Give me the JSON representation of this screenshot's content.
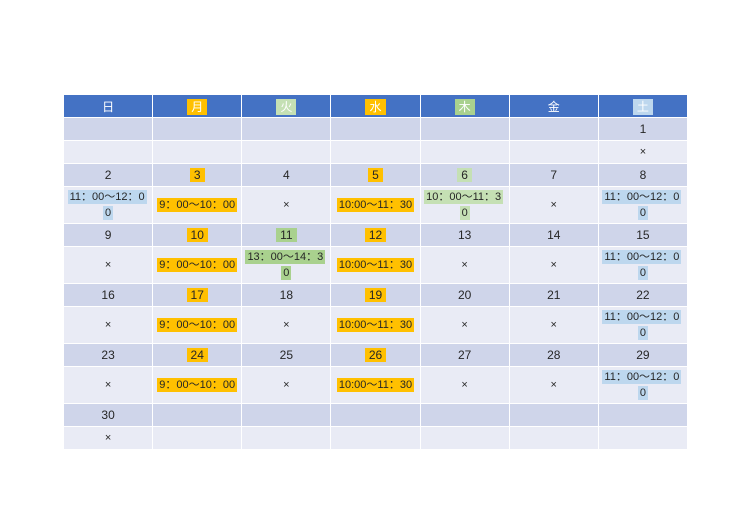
{
  "calendar": {
    "colors": {
      "header_bg": "#4472C4",
      "header_text": "#FFFFFF",
      "band_date": "#CFD5EA",
      "band_time": "#E9EBF5",
      "orange": "#FFC000",
      "green": "#A9D18E",
      "green_light": "#C5E0B4",
      "blue": "#BDD7EE",
      "text": "#262626"
    },
    "header": [
      {
        "key": "sun",
        "label": "日",
        "hl": null
      },
      {
        "key": "mon",
        "label": "月",
        "hl": "orange"
      },
      {
        "key": "tue",
        "label": "火",
        "hl": "green_light"
      },
      {
        "key": "wed",
        "label": "水",
        "hl": "orange"
      },
      {
        "key": "thu",
        "label": "木",
        "hl": "green"
      },
      {
        "key": "fri",
        "label": "金",
        "hl": null
      },
      {
        "key": "sat",
        "label": "土",
        "hl": "blue"
      }
    ],
    "rows": [
      {
        "type": "date",
        "cells": [
          {
            "text": ""
          },
          {
            "text": ""
          },
          {
            "text": ""
          },
          {
            "text": ""
          },
          {
            "text": ""
          },
          {
            "text": ""
          },
          {
            "text": "1"
          }
        ]
      },
      {
        "type": "time",
        "cells": [
          {
            "text": ""
          },
          {
            "text": ""
          },
          {
            "text": ""
          },
          {
            "text": ""
          },
          {
            "text": ""
          },
          {
            "text": ""
          },
          {
            "text": "×"
          }
        ]
      },
      {
        "type": "date",
        "cells": [
          {
            "text": "2"
          },
          {
            "text": "3",
            "hl": "orange"
          },
          {
            "text": "4"
          },
          {
            "text": "5",
            "hl": "orange"
          },
          {
            "text": "6",
            "hl": "green_light"
          },
          {
            "text": "7"
          },
          {
            "text": "8"
          }
        ]
      },
      {
        "type": "time",
        "cells": [
          {
            "text": "11：00～12：00",
            "hl": "blue"
          },
          {
            "text": "9：00～10：00",
            "hl": "orange"
          },
          {
            "text": "×"
          },
          {
            "text": "10:00～11：30",
            "hl": "orange"
          },
          {
            "text": "10：00～11：30",
            "hl": "green_light"
          },
          {
            "text": "×"
          },
          {
            "text": "11：00～12：00",
            "hl": "blue"
          }
        ]
      },
      {
        "type": "date",
        "cells": [
          {
            "text": "9"
          },
          {
            "text": "10",
            "hl": "orange"
          },
          {
            "text": "11",
            "hl": "green"
          },
          {
            "text": "12",
            "hl": "orange"
          },
          {
            "text": "13"
          },
          {
            "text": "14"
          },
          {
            "text": "15"
          }
        ]
      },
      {
        "type": "time",
        "cells": [
          {
            "text": "×"
          },
          {
            "text": "9：00～10：00",
            "hl": "orange"
          },
          {
            "text": "13：00～14：30",
            "hl": "green"
          },
          {
            "text": "10:00～11：30",
            "hl": "orange"
          },
          {
            "text": "×"
          },
          {
            "text": "×"
          },
          {
            "text": "11：00～12：00",
            "hl": "blue"
          }
        ]
      },
      {
        "type": "date",
        "cells": [
          {
            "text": "16"
          },
          {
            "text": "17",
            "hl": "orange"
          },
          {
            "text": "18"
          },
          {
            "text": "19",
            "hl": "orange"
          },
          {
            "text": "20"
          },
          {
            "text": "21"
          },
          {
            "text": "22"
          }
        ]
      },
      {
        "type": "time",
        "cells": [
          {
            "text": "×"
          },
          {
            "text": "9：00～10：00",
            "hl": "orange"
          },
          {
            "text": "×"
          },
          {
            "text": "10:00～11：30",
            "hl": "orange"
          },
          {
            "text": "×"
          },
          {
            "text": "×"
          },
          {
            "text": "11：00～12：00",
            "hl": "blue"
          }
        ]
      },
      {
        "type": "date",
        "cells": [
          {
            "text": "23"
          },
          {
            "text": "24",
            "hl": "orange"
          },
          {
            "text": "25"
          },
          {
            "text": "26",
            "hl": "orange"
          },
          {
            "text": "27"
          },
          {
            "text": "28"
          },
          {
            "text": "29"
          }
        ]
      },
      {
        "type": "time",
        "cells": [
          {
            "text": "×"
          },
          {
            "text": "9：00～10：00",
            "hl": "orange"
          },
          {
            "text": "×"
          },
          {
            "text": "10:00～11：30",
            "hl": "orange"
          },
          {
            "text": "×"
          },
          {
            "text": "×"
          },
          {
            "text": "11：00～12：00",
            "hl": "blue"
          }
        ]
      },
      {
        "type": "date",
        "cells": [
          {
            "text": "30"
          },
          {
            "text": ""
          },
          {
            "text": ""
          },
          {
            "text": ""
          },
          {
            "text": ""
          },
          {
            "text": ""
          },
          {
            "text": ""
          }
        ]
      },
      {
        "type": "time",
        "cells": [
          {
            "text": "×"
          },
          {
            "text": ""
          },
          {
            "text": ""
          },
          {
            "text": ""
          },
          {
            "text": ""
          },
          {
            "text": ""
          },
          {
            "text": ""
          }
        ]
      }
    ]
  }
}
